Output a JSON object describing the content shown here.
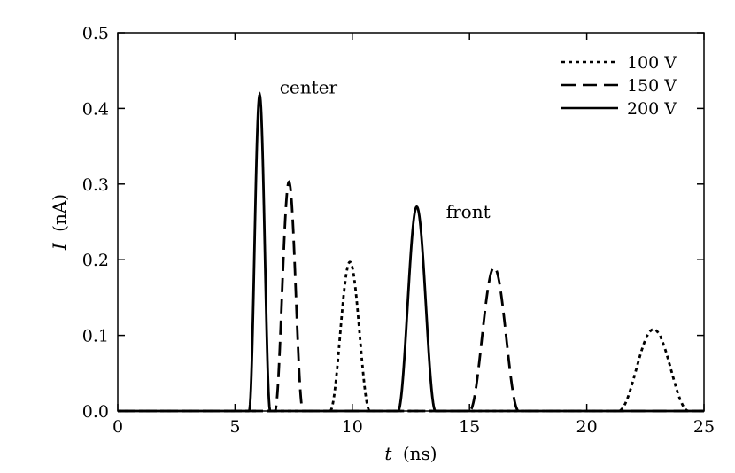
{
  "chart_data": {
    "type": "line",
    "xlabel": "t (ns)",
    "xlabel_var": "t",
    "xlabel_unit": "(ns)",
    "ylabel": "I (nA)",
    "ylabel_var": "I",
    "ylabel_unit": "(nA)",
    "xlim": [
      0,
      25
    ],
    "ylim": [
      0,
      0.5
    ],
    "xticks": [
      0,
      5,
      10,
      15,
      20,
      25
    ],
    "xtick_labels": [
      "0",
      "5",
      "10",
      "15",
      "20",
      "25"
    ],
    "yticks": [
      0.0,
      0.1,
      0.2,
      0.3,
      0.4,
      0.5
    ],
    "ytick_labels": [
      "0.0",
      "0.1",
      "0.2",
      "0.3",
      "0.4",
      "0.5"
    ],
    "grid": false,
    "legend_position": "top-right",
    "annotations": [
      {
        "text": "center",
        "x": 6.9,
        "y": 0.42
      },
      {
        "text": "front",
        "x": 14.0,
        "y": 0.255
      }
    ],
    "series": [
      {
        "name": "100 V",
        "style": "dotted",
        "peaks": [
          {
            "label": "center",
            "center": 9.9,
            "amplitude": 0.197,
            "halfwidth": 0.85
          },
          {
            "label": "front",
            "center": 22.85,
            "amplitude": 0.108,
            "halfwidth": 1.5
          }
        ]
      },
      {
        "name": "150 V",
        "style": "dashed",
        "peaks": [
          {
            "label": "center",
            "center": 7.3,
            "amplitude": 0.303,
            "halfwidth": 0.6
          },
          {
            "label": "front",
            "center": 16.05,
            "amplitude": 0.19,
            "halfwidth": 1.05
          }
        ]
      },
      {
        "name": "200 V",
        "style": "solid",
        "peaks": [
          {
            "label": "center",
            "center": 6.05,
            "amplitude": 0.418,
            "halfwidth": 0.45
          },
          {
            "label": "front",
            "center": 12.75,
            "amplitude": 0.27,
            "halfwidth": 0.8
          }
        ]
      }
    ]
  }
}
